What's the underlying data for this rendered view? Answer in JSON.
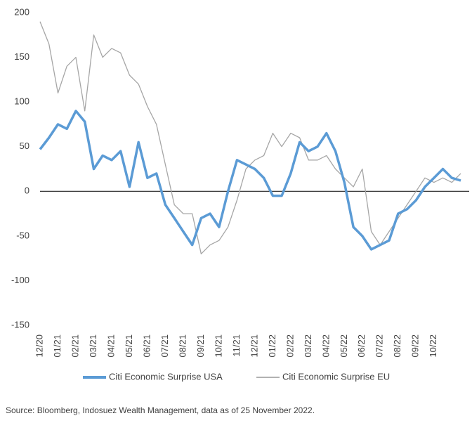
{
  "chart_data": {
    "type": "line",
    "categories": [
      "12/20",
      null,
      "01/21",
      null,
      "02/21",
      null,
      "03/21",
      null,
      "04/21",
      null,
      "05/21",
      null,
      "06/21",
      null,
      "07/21",
      null,
      "08/21",
      null,
      "09/21",
      null,
      "10/21",
      null,
      "11/21",
      null,
      "12/21",
      null,
      "01/22",
      null,
      "02/22",
      null,
      "03/22",
      null,
      "04/22",
      null,
      "05/22",
      null,
      "06/22",
      null,
      "07/22",
      null,
      "08/22",
      null,
      "09/22",
      null,
      "10/22",
      null,
      null,
      null
    ],
    "series": [
      {
        "name": "Citi Economic Surprise USA",
        "color": "#5b9bd5",
        "values": [
          47,
          60,
          75,
          70,
          90,
          78,
          25,
          40,
          35,
          45,
          5,
          55,
          15,
          20,
          -15,
          -30,
          -45,
          -60,
          -30,
          -25,
          -40,
          0,
          35,
          30,
          25,
          15,
          -5,
          -5,
          20,
          55,
          45,
          50,
          65,
          45,
          10,
          -40,
          -50,
          -65,
          -60,
          -55,
          -25,
          -20,
          -10,
          5,
          15,
          25,
          15,
          12
        ]
      },
      {
        "name": "Citi Economic Surprise EU",
        "color": "#a6a6a6",
        "values": [
          190,
          165,
          110,
          140,
          150,
          90,
          175,
          150,
          160,
          155,
          130,
          120,
          95,
          75,
          30,
          -15,
          -25,
          -25,
          -70,
          -60,
          -55,
          -40,
          -10,
          25,
          35,
          40,
          65,
          50,
          65,
          60,
          35,
          35,
          40,
          25,
          15,
          5,
          25,
          -45,
          -60,
          -45,
          -30,
          -15,
          0,
          15,
          10,
          15,
          10,
          20
        ]
      }
    ],
    "ylim": [
      -150,
      200
    ],
    "yticks": [
      -150,
      -100,
      -50,
      0,
      50,
      100,
      150,
      200
    ],
    "grid": false,
    "legend": "bottom",
    "source": "Source:  Bloomberg, Indosuez Wealth Management, data as of 25 November 2022."
  }
}
